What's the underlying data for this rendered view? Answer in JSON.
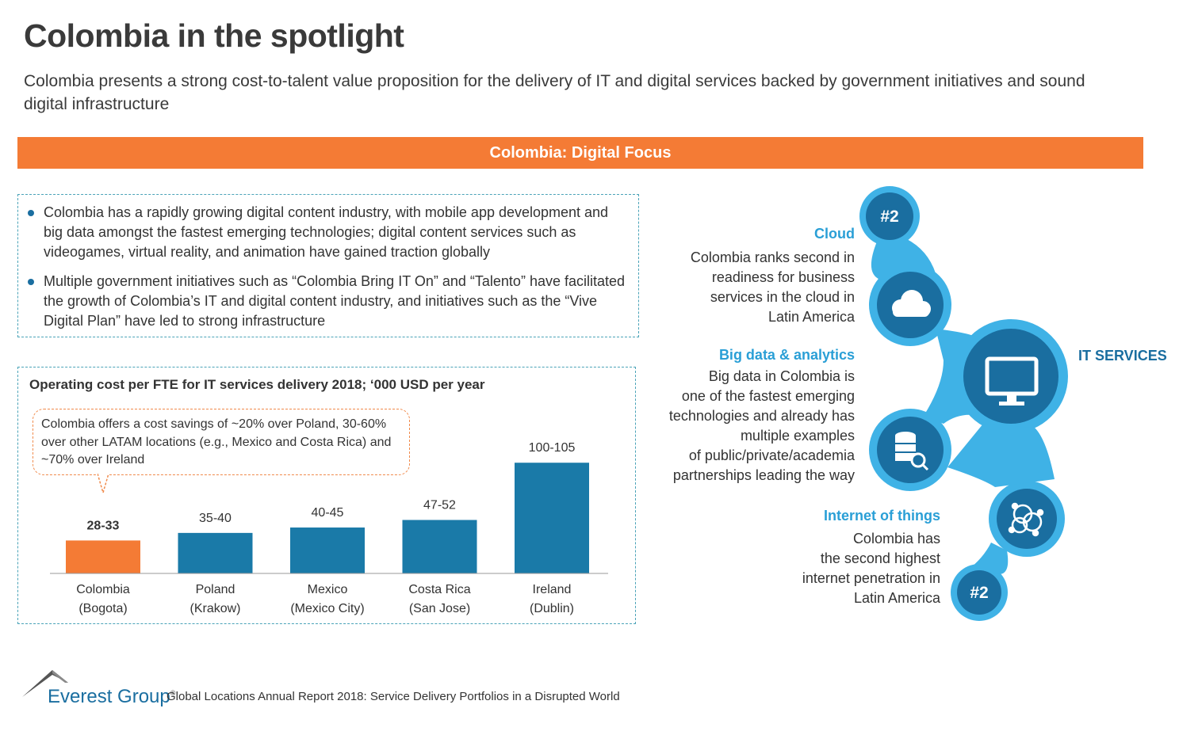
{
  "header": {
    "title": "Colombia in the spotlight",
    "subtitle": "Colombia presents a strong cost-to-talent value proposition for the delivery of IT and digital services backed by government initiatives and sound digital infrastructure"
  },
  "banner": {
    "label": "Colombia: Digital Focus"
  },
  "bullets": [
    "Colombia has a rapidly growing digital content industry, with mobile app development and big data amongst the fastest emerging technologies; digital content services such as videogames, virtual reality, and animation have gained traction globally",
    "Multiple government initiatives such as “Colombia Bring IT On” and “Talento” have facilitated the growth of Colombia’s IT and digital content industry, and initiatives such as the “Vive Digital Plan” have led to strong infrastructure"
  ],
  "chart_data": {
    "type": "bar",
    "title": "Operating cost per FTE for IT services delivery 2018; ‘000 USD per year",
    "callout": "Colombia offers a cost savings of ~20% over Poland, 30-60% over other LATAM locations (e.g., Mexico and Costa Rica) and ~70% over Ireland",
    "categories": [
      "Colombia",
      "Poland",
      "Mexico",
      "Costa Rica",
      "Ireland"
    ],
    "category_sublabels": [
      "(Bogota)",
      "(Krakow)",
      "(Mexico City)",
      "(San Jose)",
      "(Dublin)"
    ],
    "range_labels": [
      "28-33",
      "35-40",
      "40-45",
      "47-52",
      "100-105"
    ],
    "values": [
      30.5,
      37.5,
      42.5,
      49.5,
      102.5
    ],
    "highlight_index": 0,
    "colors": {
      "highlight": "#f47b35",
      "default": "#1a7aa8"
    },
    "ylim": [
      0,
      110
    ],
    "xlabel": "",
    "ylabel": ""
  },
  "right_panel": {
    "cloud": {
      "heading": "Cloud",
      "lines": [
        "Colombia ranks second in",
        "readiness for business",
        "services in the cloud in",
        "Latin America"
      ],
      "rank": "#2"
    },
    "bigdata": {
      "heading": "Big data & analytics",
      "lines": [
        "Big data in Colombia is",
        "one of the fastest emerging",
        "technologies and already has",
        "multiple examples",
        "of public/private/academia",
        "partnerships leading the way"
      ]
    },
    "iot": {
      "heading": "Internet of things",
      "lines": [
        "Colombia has",
        "the second highest",
        "internet penetration in",
        "Latin America"
      ],
      "rank": "#2"
    },
    "center_label": "IT SERVICES",
    "icons": [
      "cloud-icon",
      "monitor-icon",
      "database-search-icon",
      "network-icon"
    ]
  },
  "colors": {
    "accent_orange": "#f47b35",
    "accent_blue": "#2a9fd6",
    "dark_blue": "#1a6ea0",
    "light_blue": "#3fb2e6"
  },
  "footer": {
    "brand": "Everest Group",
    "registered": "®",
    "report": "Global Locations Annual Report 2018: Service Delivery Portfolios in a Disrupted World"
  }
}
